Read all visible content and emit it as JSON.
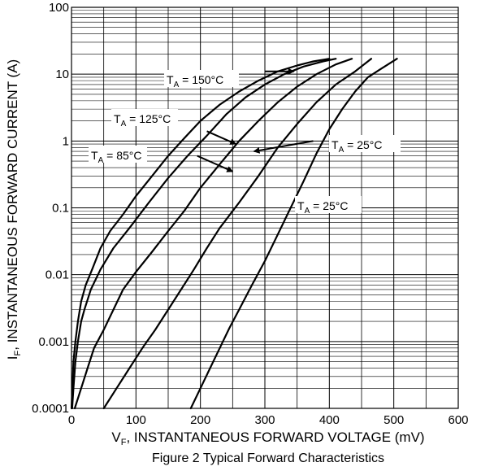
{
  "chart_data": {
    "type": "line",
    "title": "Figure 2 Typical Forward Characteristics",
    "xlabel": "V_F, INSTANTANEOUS FORWARD VOLTAGE (mV)",
    "ylabel": "I_F, INSTANTANEOUS FORWARD CURRENT (A)",
    "xlim": [
      0,
      600
    ],
    "ylim": [
      0.0001,
      100
    ],
    "yscale": "log",
    "grid": true,
    "x_ticks": [
      "0",
      "100",
      "200",
      "300",
      "400",
      "500",
      "600"
    ],
    "y_ticks": [
      "0.0001",
      "0.001",
      "0.01",
      "0.1",
      "1",
      "10",
      "100"
    ],
    "series": [
      {
        "name": "T_A = 150°C",
        "x": [
          0,
          3,
          6,
          10,
          15,
          22,
          32,
          45,
          60,
          80,
          100,
          125,
          150,
          175,
          200,
          230,
          260,
          290,
          320,
          350,
          375,
          400
        ],
        "y": [
          0.0001,
          0.0005,
          0.001,
          0.002,
          0.004,
          0.007,
          0.012,
          0.025,
          0.045,
          0.08,
          0.15,
          0.3,
          0.6,
          1.1,
          2.0,
          3.5,
          5.5,
          8.0,
          11,
          13.5,
          15.5,
          17
        ]
      },
      {
        "name": "T_A = 125°C",
        "x": [
          1,
          3,
          6,
          10,
          15,
          20,
          30,
          45,
          65,
          90,
          120,
          150,
          180,
          210,
          240,
          270,
          300,
          330,
          360,
          390,
          410
        ],
        "y": [
          0.0001,
          0.0002,
          0.0005,
          0.001,
          0.002,
          0.003,
          0.006,
          0.012,
          0.025,
          0.05,
          0.12,
          0.28,
          0.6,
          1.2,
          2.5,
          4.5,
          7.0,
          10,
          13,
          15.5,
          17
        ]
      },
      {
        "name": "T_A = 85°C",
        "x": [
          5,
          15,
          25,
          35,
          50,
          65,
          80,
          100,
          125,
          150,
          175,
          200,
          230,
          260,
          290,
          320,
          350,
          380,
          410,
          435
        ],
        "y": [
          0.0001,
          0.0002,
          0.0004,
          0.0008,
          0.0015,
          0.003,
          0.006,
          0.011,
          0.022,
          0.045,
          0.09,
          0.2,
          0.45,
          1.0,
          2.0,
          3.8,
          6.5,
          10,
          14,
          17
        ]
      },
      {
        "name": "T_A = 25°C",
        "x": [
          50,
          70,
          90,
          110,
          130,
          150,
          170,
          190,
          210,
          230,
          260,
          290,
          320,
          350,
          380,
          410,
          440,
          465
        ],
        "y": [
          0.0001,
          0.0002,
          0.0004,
          0.0008,
          0.0015,
          0.003,
          0.006,
          0.012,
          0.025,
          0.05,
          0.12,
          0.3,
          0.8,
          1.8,
          3.8,
          7.0,
          11,
          17
        ]
      },
      {
        "name": "T_A = 25°C",
        "x": [
          185,
          200,
          215,
          230,
          245,
          260,
          280,
          300,
          320,
          340,
          360,
          380,
          400,
          420,
          440,
          460,
          480,
          505
        ],
        "y": [
          0.0001,
          0.0002,
          0.0004,
          0.0008,
          0.0016,
          0.003,
          0.007,
          0.016,
          0.04,
          0.1,
          0.25,
          0.65,
          1.5,
          3.0,
          5.5,
          9.0,
          12,
          17
        ]
      }
    ],
    "annotations": [
      {
        "label": "T_A = 150°C",
        "arrow_from": [
          300,
          11
        ],
        "arrow_to": [
          345,
          11
        ]
      },
      {
        "label": "T_A = 125°C",
        "arrow_from": [
          210,
          1.4
        ],
        "arrow_to": [
          255,
          0.9
        ]
      },
      {
        "label": "T_A = 85°C",
        "arrow_from": [
          195,
          0.6
        ],
        "arrow_to": [
          250,
          0.35
        ]
      },
      {
        "label": "T_A = 25°C",
        "arrow_from": [
          375,
          1.0
        ],
        "arrow_to": [
          283,
          0.7
        ]
      },
      {
        "label": "T_A = 25°C",
        "arrow_from": null,
        "arrow_to": null
      }
    ]
  }
}
